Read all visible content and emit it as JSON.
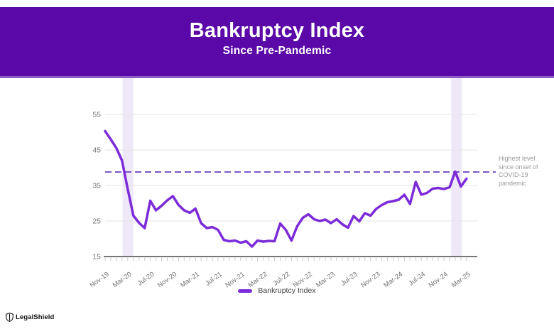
{
  "header": {
    "title": "Bankruptcy Index",
    "subtitle": "Since Pre-Pandemic",
    "background_color": "#5a08a8"
  },
  "annotation": {
    "text": "Highest level since onset of COVID-19 pandemic"
  },
  "legend": {
    "label": "Bankruptcy Index",
    "swatch_color": "#7c2bd9"
  },
  "footer": {
    "brand": "LegalShield"
  },
  "chart_data": {
    "type": "line",
    "title": "Bankruptcy Index",
    "subtitle": "Since Pre-Pandemic",
    "x": [
      "Nov-19",
      "Dec-19",
      "Jan-20",
      "Feb-20",
      "Mar-20",
      "Apr-20",
      "May-20",
      "Jun-20",
      "Jul-20",
      "Aug-20",
      "Sep-20",
      "Oct-20",
      "Nov-20",
      "Dec-20",
      "Jan-21",
      "Feb-21",
      "Mar-21",
      "Apr-21",
      "May-21",
      "Jun-21",
      "Jul-21",
      "Aug-21",
      "Sep-21",
      "Oct-21",
      "Nov-21",
      "Dec-21",
      "Jan-22",
      "Feb-22",
      "Mar-22",
      "Apr-22",
      "May-22",
      "Jun-22",
      "Jul-22",
      "Aug-22",
      "Sep-22",
      "Oct-22",
      "Nov-22",
      "Dec-22",
      "Jan-23",
      "Feb-23",
      "Mar-23",
      "Apr-23",
      "May-23",
      "Jun-23",
      "Jul-23",
      "Aug-23",
      "Sep-23",
      "Oct-23",
      "Nov-23",
      "Dec-23",
      "Jan-24",
      "Feb-24",
      "Mar-24",
      "Apr-24",
      "May-24",
      "Jun-24",
      "Jul-24",
      "Aug-24",
      "Sep-24",
      "Oct-24",
      "Nov-24",
      "Dec-24",
      "Jan-25",
      "Feb-25",
      "Mar-25"
    ],
    "x_tick_labels_shown": [
      "Nov-19",
      "Mar-20",
      "Jul-20",
      "Nov-20",
      "Mar-21",
      "Jul-21",
      "Nov-21",
      "Mar-22",
      "Jul-22",
      "Nov-22",
      "Mar-23",
      "Jul-23",
      "Nov-23",
      "Mar-24",
      "Jul-24",
      "Nov-24",
      "Mar-25"
    ],
    "series": [
      {
        "name": "Bankruptcy Index",
        "color": "#7c2bd9",
        "values": [
          50.3,
          48.0,
          45.5,
          42.0,
          34.0,
          26.5,
          24.5,
          23.0,
          30.7,
          28.0,
          29.3,
          30.8,
          32.0,
          29.5,
          28.0,
          27.3,
          28.5,
          24.4,
          23.0,
          23.3,
          22.5,
          19.7,
          19.3,
          19.5,
          18.9,
          19.3,
          17.8,
          19.5,
          19.2,
          19.4,
          19.3,
          24.3,
          22.5,
          19.5,
          23.5,
          25.9,
          26.9,
          25.5,
          25.0,
          25.4,
          24.4,
          25.5,
          24.1,
          23.1,
          26.4,
          24.9,
          27.2,
          26.5,
          28.4,
          29.5,
          30.3,
          30.6,
          31.0,
          32.4,
          29.8,
          36.0,
          32.4,
          32.9,
          34.1,
          34.3,
          34.0,
          34.5,
          38.9,
          34.7,
          36.9
        ]
      }
    ],
    "ylim": [
      15,
      55
    ],
    "yticks": [
      15,
      25,
      35,
      45,
      55
    ],
    "grid": true,
    "legend_position": "bottom",
    "reference_line": {
      "value": 38.8,
      "style": "dashed",
      "color": "#7b57c9",
      "label": "Highest level since onset of COVID-19 pandemic"
    },
    "highlight_bands": [
      {
        "from": "Feb-20",
        "to": "Apr-20",
        "from_idx": 3.1,
        "to_idx": 5.0,
        "color": "#efe8f9"
      },
      {
        "from": "Dec-24",
        "to": "Feb-25",
        "from_idx": 61.3,
        "to_idx": 63.2,
        "color": "#efe8f9"
      }
    ]
  }
}
